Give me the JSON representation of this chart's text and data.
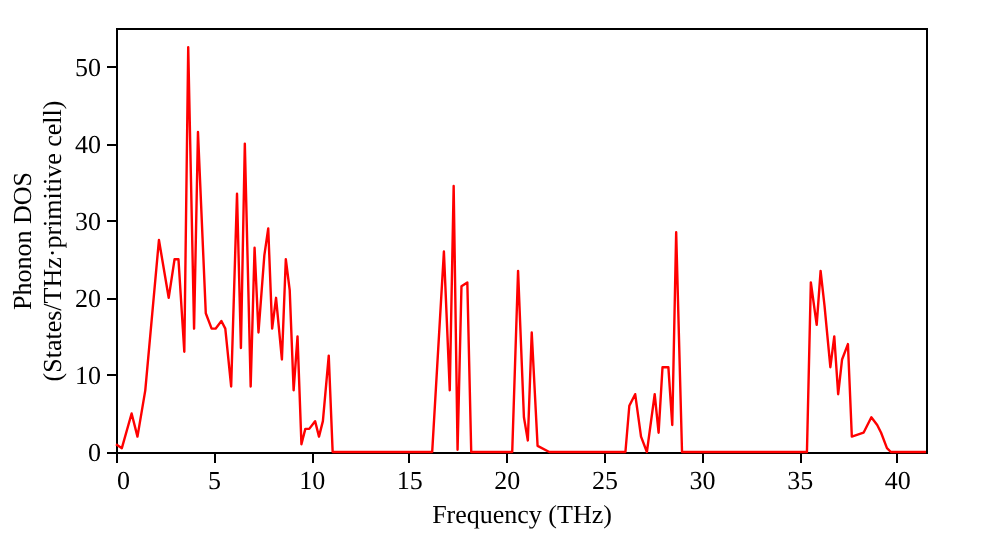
{
  "chart_data": {
    "type": "line",
    "xlabel": "Frequency (THz)",
    "ylabel": "Phonon DOS\n(States/THz·primitive cell)",
    "xlim": [
      0,
      41.5
    ],
    "ylim": [
      0,
      55
    ],
    "xticks": [
      0,
      5,
      10,
      15,
      20,
      25,
      30,
      35,
      40
    ],
    "yticks": [
      0,
      10,
      20,
      30,
      40,
      50
    ],
    "grid": false,
    "marker": "none",
    "line_style": "solid",
    "series": [
      {
        "color": "#ff0000",
        "x": [
          0,
          0.3,
          0.8,
          1.1,
          1.5,
          2.2,
          2.7,
          3.0,
          3.2,
          3.5,
          3.7,
          4.0,
          4.2,
          4.6,
          4.9,
          5.1,
          5.4,
          5.6,
          5.9,
          6.2,
          6.4,
          6.6,
          6.9,
          7.1,
          7.3,
          7.6,
          7.8,
          8.0,
          8.2,
          8.5,
          8.7,
          8.9,
          9.1,
          9.3,
          9.5,
          9.7,
          9.9,
          10.2,
          10.4,
          10.6,
          10.9,
          11.1,
          16.2,
          16.8,
          17.1,
          17.3,
          17.5,
          17.7,
          18.0,
          18.2,
          20.3,
          20.6,
          20.9,
          21.1,
          21.3,
          21.6,
          22.2,
          26.1,
          26.3,
          26.6,
          26.9,
          27.2,
          27.6,
          27.8,
          28.0,
          28.3,
          28.5,
          28.7,
          29.0,
          35.4,
          35.6,
          35.9,
          36.1,
          36.3,
          36.6,
          36.8,
          37.0,
          37.2,
          37.5,
          37.7,
          38.3,
          38.7,
          39.0,
          39.2,
          39.5,
          39.7,
          41.5
        ],
        "values": [
          1,
          0.5,
          5,
          2,
          8,
          27.5,
          20,
          25,
          25,
          13,
          52.5,
          16,
          41.5,
          18,
          16,
          16,
          17,
          16,
          8.5,
          33.5,
          13.5,
          40,
          8.5,
          26.5,
          15.5,
          25.5,
          29,
          16,
          20,
          12,
          25,
          21,
          8,
          15,
          1,
          3,
          3,
          4,
          2,
          4,
          12.5,
          0,
          0,
          26,
          8,
          34.5,
          0.3,
          21.5,
          22,
          0,
          0,
          23.5,
          4.5,
          1.5,
          15.5,
          0.8,
          0,
          0,
          6,
          7.5,
          2,
          0,
          7.5,
          2.5,
          11,
          11,
          3.5,
          28.5,
          0,
          0,
          22,
          16.5,
          23.5,
          19,
          11,
          15,
          7.5,
          12,
          14,
          2,
          2.5,
          4.5,
          3.5,
          2.5,
          0.5,
          0,
          0
        ]
      }
    ]
  }
}
